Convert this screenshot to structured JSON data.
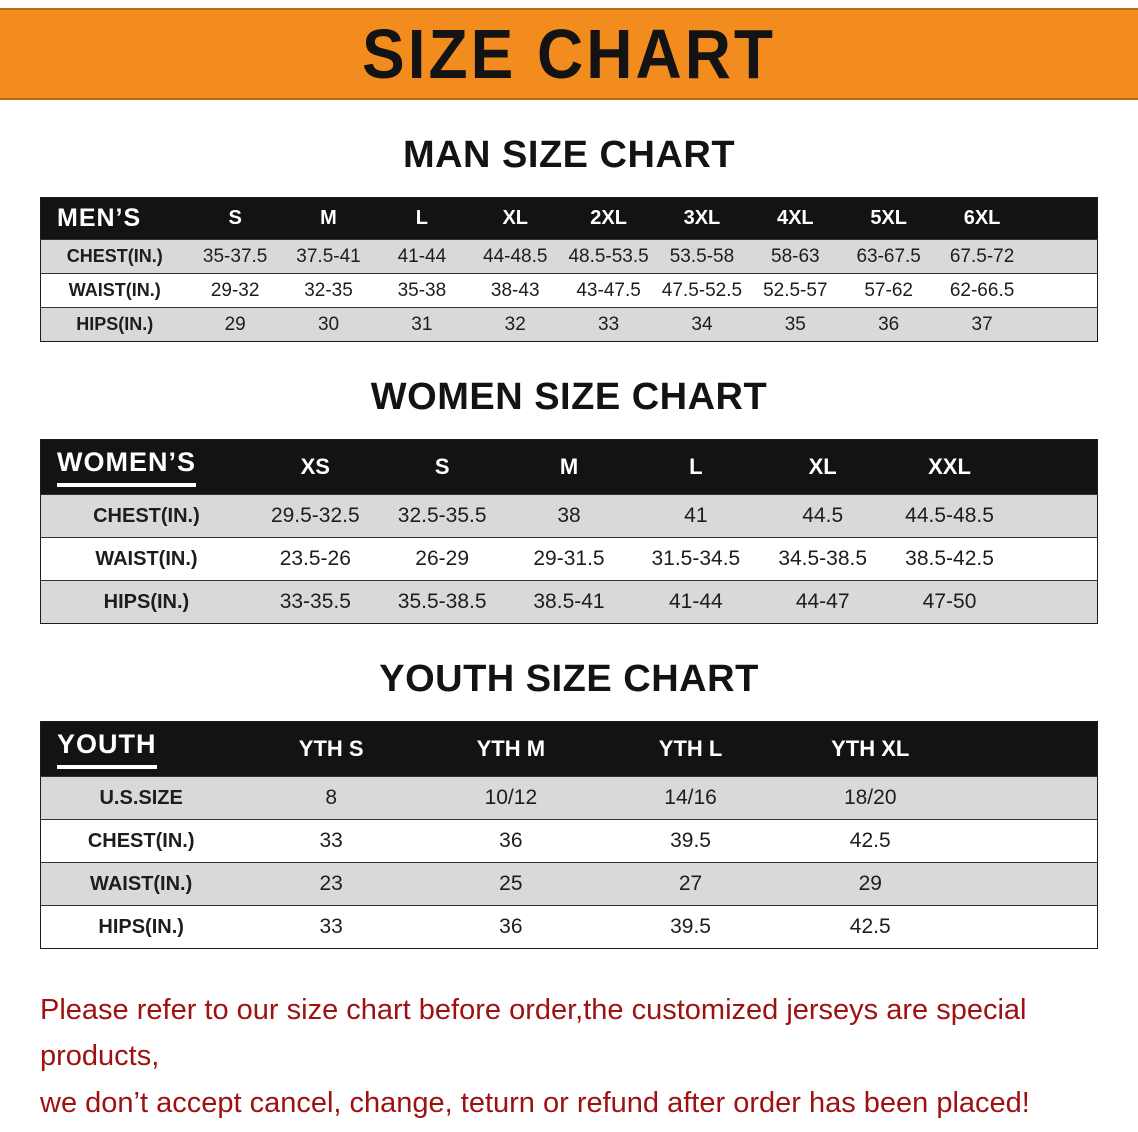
{
  "banner": {
    "title": "SIZE CHART",
    "bg_color": "#F28C1E"
  },
  "sections": [
    {
      "title": "MAN SIZE CHART",
      "corner_label": "MEN’S",
      "columns": [
        "S",
        "M",
        "L",
        "XL",
        "2XL",
        "3XL",
        "4XL",
        "5XL",
        "6XL"
      ],
      "rows": [
        {
          "label": "CHEST(IN.)",
          "values": [
            "35-37.5",
            "37.5-41",
            "41-44",
            "44-48.5",
            "48.5-53.5",
            "53.5-58",
            "58-63",
            "63-67.5",
            "67.5-72"
          ]
        },
        {
          "label": "WAIST(IN.)",
          "values": [
            "29-32",
            "32-35",
            "35-38",
            "38-43",
            "43-47.5",
            "47.5-52.5",
            "52.5-57",
            "57-62",
            "62-66.5"
          ]
        },
        {
          "label": "HIPS(IN.)",
          "values": [
            "29",
            "30",
            "31",
            "32",
            "33",
            "34",
            "35",
            "36",
            "37"
          ]
        }
      ]
    },
    {
      "title": "WOMEN SIZE CHART",
      "corner_label": "WOMEN’S",
      "columns": [
        "XS",
        "S",
        "M",
        "L",
        "XL",
        "XXL"
      ],
      "rows": [
        {
          "label": "CHEST(IN.)",
          "values": [
            "29.5-32.5",
            "32.5-35.5",
            "38",
            "41",
            "44.5",
            "44.5-48.5"
          ]
        },
        {
          "label": "WAIST(IN.)",
          "values": [
            "23.5-26",
            "26-29",
            "29-31.5",
            "31.5-34.5",
            "34.5-38.5",
            "38.5-42.5"
          ]
        },
        {
          "label": "HIPS(IN.)",
          "values": [
            "33-35.5",
            "35.5-38.5",
            "38.5-41",
            "41-44",
            "44-47",
            "47-50"
          ]
        }
      ]
    },
    {
      "title": "YOUTH SIZE CHART",
      "corner_label": "YOUTH",
      "columns": [
        "YTH S",
        "YTH M",
        "YTH L",
        "YTH XL"
      ],
      "rows": [
        {
          "label": "U.S.SIZE",
          "values": [
            "8",
            "10/12",
            "14/16",
            "18/20"
          ]
        },
        {
          "label": "CHEST(IN.)",
          "values": [
            "33",
            "36",
            "39.5",
            "42.5"
          ]
        },
        {
          "label": "WAIST(IN.)",
          "values": [
            "23",
            "25",
            "27",
            "29"
          ]
        },
        {
          "label": "HIPS(IN.)",
          "values": [
            "33",
            "36",
            "39.5",
            "42.5"
          ]
        }
      ]
    }
  ],
  "footer": {
    "color": "#9E1111",
    "line1": "Please refer to our size chart before order,the customized jerseys are special products,",
    "line2": "we don’t accept cancel, change, teturn or refund after order has been placed!"
  }
}
